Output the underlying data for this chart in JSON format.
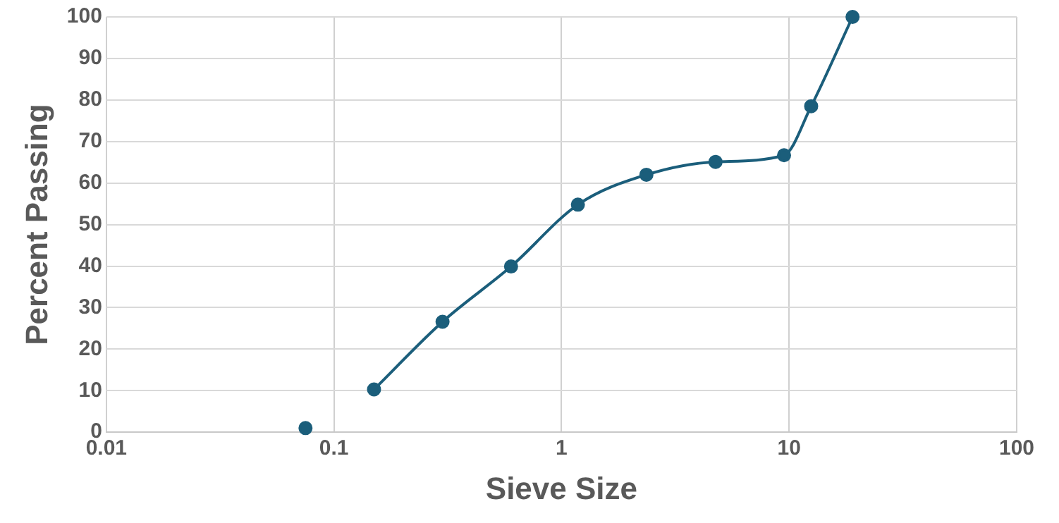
{
  "chart_data": {
    "type": "line",
    "xlabel": "Sieve Size",
    "ylabel": "Percent Passing",
    "log": "x",
    "xlim": [
      0.01,
      100
    ],
    "xticks": [
      0.01,
      0.1,
      1,
      10,
      100
    ],
    "ylim": [
      0,
      100
    ],
    "yticks": [
      0,
      10,
      20,
      30,
      40,
      50,
      60,
      70,
      80,
      90,
      100
    ],
    "grid": true,
    "legend": false,
    "marker": "circle",
    "series": [
      {
        "type": "scatter",
        "color": "#1b5e7b",
        "x": [
          0.075
        ],
        "values": [
          1
        ]
      },
      {
        "color": "#1b5e7b",
        "x": [
          0.15,
          0.3,
          0.6,
          1.18,
          2.36,
          4.75,
          9.5,
          12.5,
          19
        ],
        "values": [
          10.3,
          26.6,
          39.9,
          54.8,
          62,
          65.1,
          66.7,
          78.5,
          100
        ]
      }
    ]
  }
}
